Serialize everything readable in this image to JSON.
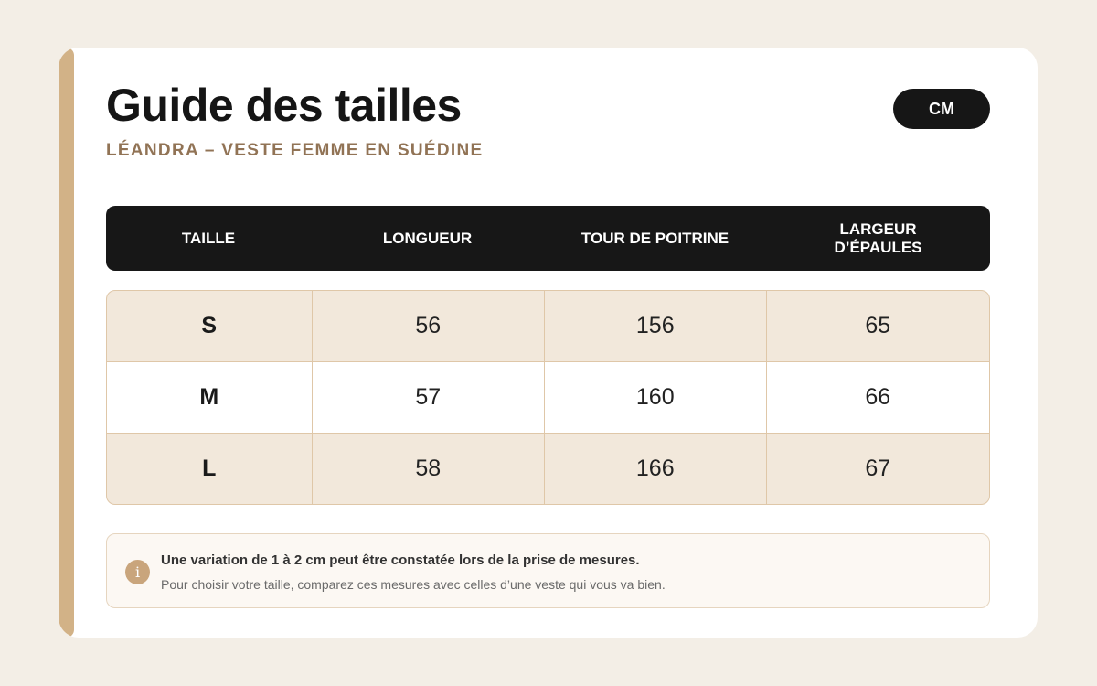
{
  "header": {
    "title": "Guide des tailles",
    "subtitle": "LÉANDRA – VESTE FEMME EN SUÉDINE",
    "unit_toggle": "CM"
  },
  "table": {
    "columns": [
      "TAILLE",
      "LONGUEUR",
      "TOUR DE POITRINE",
      "LARGEUR\nD’ÉPAULES"
    ],
    "rows": [
      [
        "S",
        "56",
        "156",
        "65"
      ],
      [
        "M",
        "57",
        "160",
        "66"
      ],
      [
        "L",
        "58",
        "166",
        "67"
      ]
    ]
  },
  "note": {
    "icon": "info-icon",
    "strong": "Une variation de 1 à 2 cm peut être constatée lors de la prise de mesures.",
    "text": "Pour choisir votre taille, comparez ces mesures avec celles d’une veste qui vous va bien."
  },
  "colors": {
    "accent": "#d2b287",
    "header_bg": "#171717",
    "row_shaded": "#f2e8db",
    "subtitle": "#917355"
  }
}
